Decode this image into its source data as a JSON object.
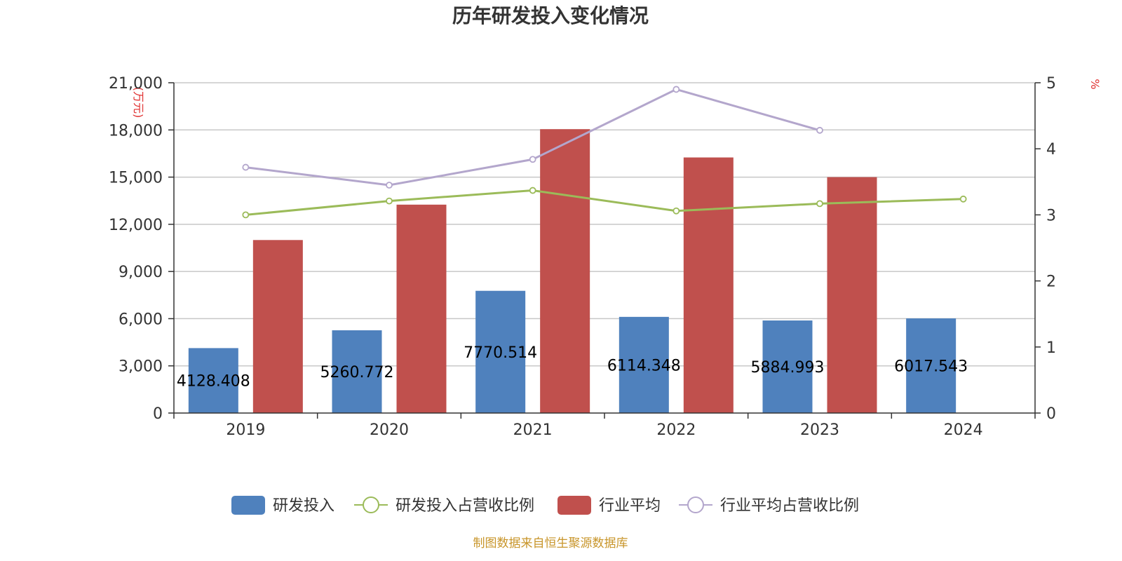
{
  "chart_data": {
    "type": "bar",
    "title": "历年研发投入变化情况",
    "categories": [
      "2019",
      "2020",
      "2021",
      "2022",
      "2023",
      "2024"
    ],
    "y_left": {
      "unit": "(万元)",
      "ylim": [
        0,
        21000
      ],
      "ticks": [
        0,
        3000,
        6000,
        9000,
        12000,
        15000,
        18000,
        21000
      ],
      "tick_labels": [
        "0",
        "3,000",
        "6,000",
        "9,000",
        "12,000",
        "15,000",
        "18,000",
        "21,000"
      ]
    },
    "y_right": {
      "unit": "%",
      "ylim": [
        0,
        5
      ],
      "ticks": [
        0,
        1,
        2,
        3,
        4,
        5
      ],
      "tick_labels": [
        "0",
        "1",
        "2",
        "3",
        "4",
        "5"
      ]
    },
    "series": [
      {
        "name": "研发投入",
        "type": "bar",
        "axis": "left",
        "color": "#4f81bd",
        "values": [
          4128.408,
          5260.772,
          7770.514,
          6114.348,
          5884.993,
          6017.543
        ],
        "labels": [
          "4128.408",
          "5260.772",
          "7770.514",
          "6114.348",
          "5884.993",
          "6017.543"
        ]
      },
      {
        "name": "研发投入占营收比例",
        "type": "line",
        "axis": "right",
        "color": "#9bbb59",
        "values": [
          3.0,
          3.21,
          3.37,
          3.06,
          3.17,
          3.24
        ]
      },
      {
        "name": "行业平均",
        "type": "bar",
        "axis": "left",
        "color": "#c0504d",
        "values": [
          11000,
          13250,
          18050,
          16250,
          15000,
          null
        ]
      },
      {
        "name": "行业平均占营收比例",
        "type": "line",
        "axis": "right",
        "color": "#b3a6cc",
        "values": [
          3.72,
          3.45,
          3.84,
          4.9,
          4.28,
          null
        ]
      }
    ],
    "grid": true,
    "legend_position": "bottom"
  },
  "footer": "制图数据来自恒生聚源数据库"
}
